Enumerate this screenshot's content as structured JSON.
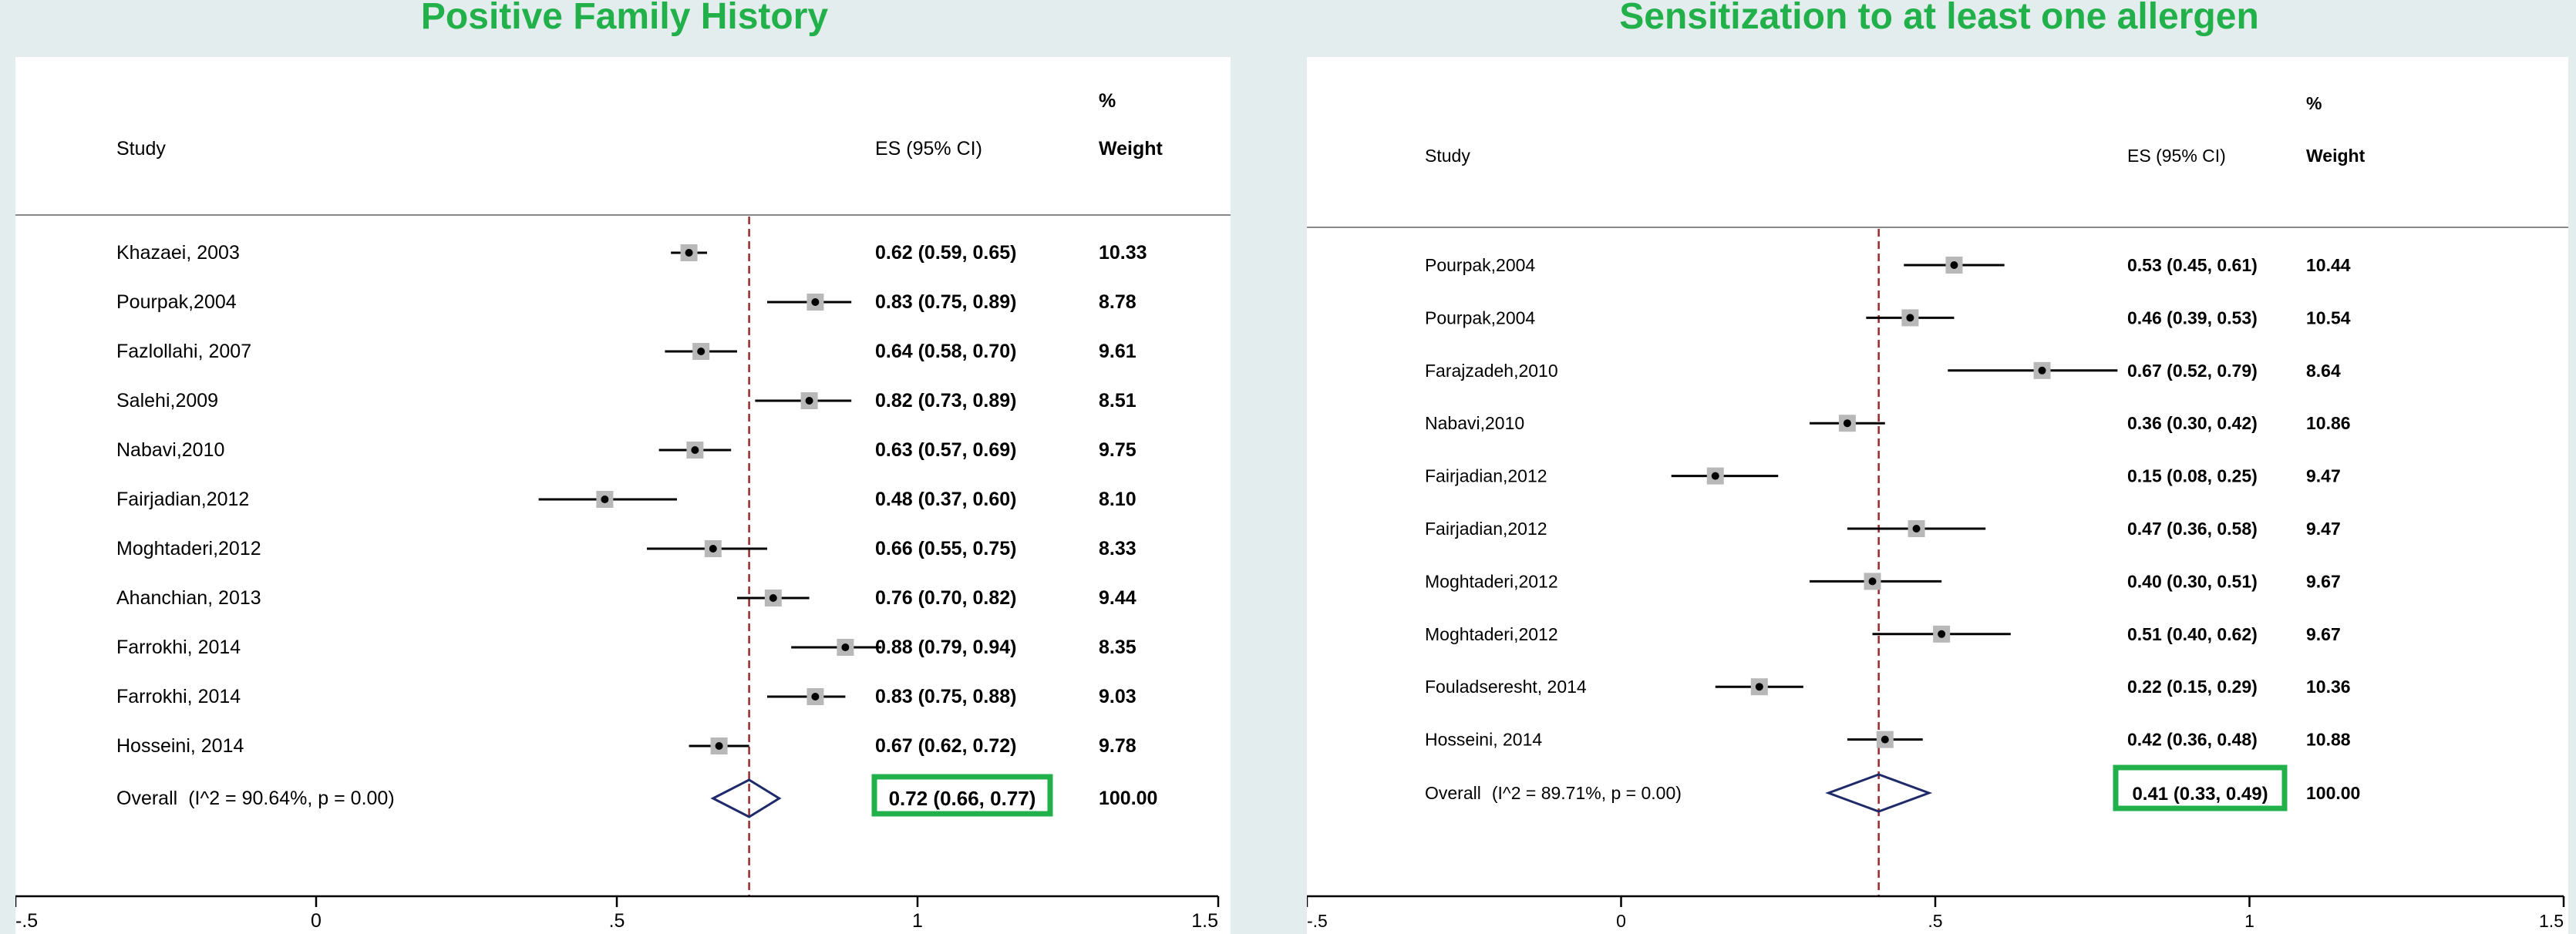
{
  "chart_data": [
    {
      "type": "forest",
      "title": "Positive Family History",
      "columns": {
        "study": "Study",
        "es": "ES (95% CI)",
        "weight_top": "%",
        "weight_bottom": "Weight"
      },
      "xlim": [
        -0.5,
        1.5
      ],
      "x_ticks": [
        "-.5",
        "0",
        ".5",
        "1",
        "1.5"
      ],
      "x_tick_values": [
        -0.5,
        0,
        0.5,
        1,
        1.5
      ],
      "reference_line": 0.72,
      "studies": [
        {
          "name": "Khazaei, 2003",
          "es": 0.62,
          "lower": 0.59,
          "upper": 0.65,
          "es_text": "0.62 (0.59, 0.65)",
          "weight": "10.33"
        },
        {
          "name": "Pourpak,2004",
          "es": 0.83,
          "lower": 0.75,
          "upper": 0.89,
          "es_text": "0.83 (0.75, 0.89)",
          "weight": "8.78"
        },
        {
          "name": "Fazlollahi, 2007",
          "es": 0.64,
          "lower": 0.58,
          "upper": 0.7,
          "es_text": "0.64 (0.58, 0.70)",
          "weight": "9.61"
        },
        {
          "name": "Salehi,2009",
          "es": 0.82,
          "lower": 0.73,
          "upper": 0.89,
          "es_text": "0.82 (0.73, 0.89)",
          "weight": "8.51"
        },
        {
          "name": "Nabavi,2010",
          "es": 0.63,
          "lower": 0.57,
          "upper": 0.69,
          "es_text": "0.63 (0.57, 0.69)",
          "weight": "9.75"
        },
        {
          "name": "Fairjadian,2012",
          "es": 0.48,
          "lower": 0.37,
          "upper": 0.6,
          "es_text": "0.48 (0.37, 0.60)",
          "weight": "8.10"
        },
        {
          "name": "Moghtaderi,2012",
          "es": 0.66,
          "lower": 0.55,
          "upper": 0.75,
          "es_text": "0.66 (0.55, 0.75)",
          "weight": "8.33"
        },
        {
          "name": "Ahanchian, 2013",
          "es": 0.76,
          "lower": 0.7,
          "upper": 0.82,
          "es_text": "0.76 (0.70, 0.82)",
          "weight": "9.44"
        },
        {
          "name": "Farrokhi, 2014",
          "es": 0.88,
          "lower": 0.79,
          "upper": 0.94,
          "es_text": "0.88 (0.79, 0.94)",
          "weight": "8.35"
        },
        {
          "name": "Farrokhi, 2014",
          "es": 0.83,
          "lower": 0.75,
          "upper": 0.88,
          "es_text": "0.83 (0.75, 0.88)",
          "weight": "9.03"
        },
        {
          "name": "Hosseini, 2014",
          "es": 0.67,
          "lower": 0.62,
          "upper": 0.72,
          "es_text": "0.67 (0.62, 0.72)",
          "weight": "9.78"
        }
      ],
      "overall": {
        "label": "Overall",
        "stats": "(I^2 = 90.64%, p = 0.00)",
        "es": 0.72,
        "lower": 0.66,
        "upper": 0.77,
        "es_text": "0.72 (0.66, 0.77)",
        "weight": "100.00"
      },
      "highlight_color": "#22b04b",
      "diamond_color": "#1f2a6b",
      "reference_color": "#9b2b2b"
    },
    {
      "type": "forest",
      "title": "Sensitization to at least one allergen",
      "columns": {
        "study": "Study",
        "es": "ES (95% CI)",
        "weight_top": "%",
        "weight_bottom": "Weight"
      },
      "xlim": [
        -0.5,
        1.5
      ],
      "x_ticks": [
        "-.5",
        "0",
        ".5",
        "1",
        "1.5"
      ],
      "x_tick_values": [
        -0.5,
        0,
        0.5,
        1,
        1.5
      ],
      "reference_line": 0.41,
      "studies": [
        {
          "name": "Pourpak,2004",
          "es": 0.53,
          "lower": 0.45,
          "upper": 0.61,
          "es_text": "0.53 (0.45, 0.61)",
          "weight": "10.44"
        },
        {
          "name": "Pourpak,2004",
          "es": 0.46,
          "lower": 0.39,
          "upper": 0.53,
          "es_text": "0.46 (0.39, 0.53)",
          "weight": "10.54"
        },
        {
          "name": "Farajzadeh,2010",
          "es": 0.67,
          "lower": 0.52,
          "upper": 0.79,
          "es_text": "0.67 (0.52, 0.79)",
          "weight": "8.64"
        },
        {
          "name": "Nabavi,2010",
          "es": 0.36,
          "lower": 0.3,
          "upper": 0.42,
          "es_text": "0.36 (0.30, 0.42)",
          "weight": "10.86"
        },
        {
          "name": "Fairjadian,2012",
          "es": 0.15,
          "lower": 0.08,
          "upper": 0.25,
          "es_text": "0.15 (0.08, 0.25)",
          "weight": "9.47"
        },
        {
          "name": "Fairjadian,2012",
          "es": 0.47,
          "lower": 0.36,
          "upper": 0.58,
          "es_text": "0.47 (0.36, 0.58)",
          "weight": "9.47"
        },
        {
          "name": "Moghtaderi,2012",
          "es": 0.4,
          "lower": 0.3,
          "upper": 0.51,
          "es_text": "0.40 (0.30, 0.51)",
          "weight": "9.67"
        },
        {
          "name": "Moghtaderi,2012",
          "es": 0.51,
          "lower": 0.4,
          "upper": 0.62,
          "es_text": "0.51 (0.40, 0.62)",
          "weight": "9.67"
        },
        {
          "name": "Fouladseresht, 2014",
          "es": 0.22,
          "lower": 0.15,
          "upper": 0.29,
          "es_text": "0.22 (0.15, 0.29)",
          "weight": "10.36"
        },
        {
          "name": "Hosseini, 2014",
          "es": 0.42,
          "lower": 0.36,
          "upper": 0.48,
          "es_text": "0.42 (0.36, 0.48)",
          "weight": "10.88"
        }
      ],
      "overall": {
        "label": "Overall",
        "stats": "(I^2 = 89.71%, p = 0.00)",
        "es": 0.41,
        "lower": 0.33,
        "upper": 0.49,
        "es_text": "0.41 (0.33, 0.49)",
        "weight": "100.00"
      },
      "highlight_color": "#22b04b",
      "diamond_color": "#1f2a6b",
      "reference_color": "#9b2b2b"
    }
  ]
}
